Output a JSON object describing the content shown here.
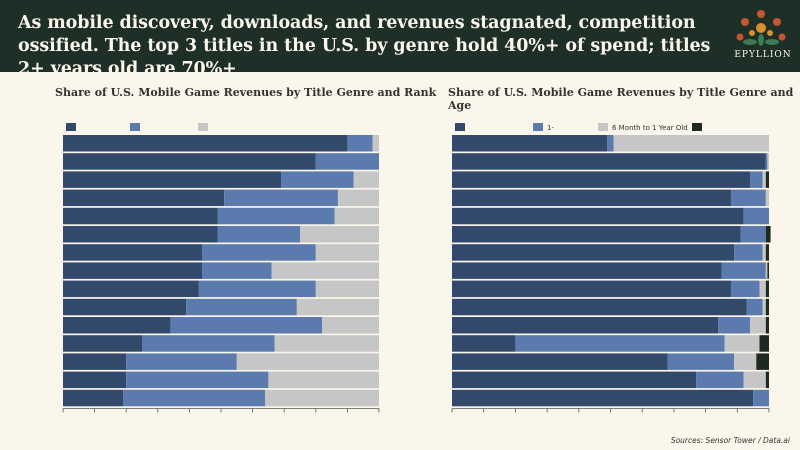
{
  "header": {
    "headline": "As mobile discovery, downloads, and revenues stagnated, competition ossified. The top 3 titles in the U.S. by genre hold 40%+ of spend; titles 2+ years old are 70%+",
    "brand": "EPYLLION"
  },
  "source": "Sources: Sensor Tower / Data.ai",
  "colors": {
    "background": "#fbf6ec",
    "header": "#1d2f27",
    "series_dark": "#33496b",
    "series_mid": "#5b7bae",
    "series_light": "#c6c6c6",
    "series_black": "#1c2a22"
  },
  "chart_data": [
    {
      "type": "bar",
      "orientation": "horizontal",
      "stacked": true,
      "title": "Share of U.S. Mobile Game Revenues by Title Genre and Rank",
      "legend": [
        "",
        "",
        ""
      ],
      "legend_position": "top-left",
      "xlim": [
        0,
        100
      ],
      "series": [
        {
          "values": [
            90,
            80,
            69,
            51,
            49,
            49,
            44,
            44,
            43,
            39,
            34,
            25,
            20,
            20,
            19
          ]
        },
        {
          "values": [
            8,
            20,
            23,
            36,
            37,
            26,
            36,
            22,
            37,
            35,
            48,
            42,
            35,
            45,
            45
          ]
        },
        {
          "values": [
            2,
            0,
            8,
            13,
            14,
            25,
            20,
            34,
            20,
            26,
            18,
            33,
            45,
            35,
            36
          ]
        }
      ]
    },
    {
      "type": "bar",
      "orientation": "horizontal",
      "stacked": true,
      "title": "Share of U.S. Mobile Game Revenues by Title Genre and Age",
      "legend": [
        "",
        "1-",
        "6 Month to 1 Year Old",
        ""
      ],
      "legend_position": "top-left",
      "xlim": [
        0,
        100
      ],
      "series": [
        {
          "values": [
            49,
            99,
            94,
            88,
            92,
            91,
            89,
            85,
            88,
            93,
            84,
            20,
            68,
            77,
            95
          ]
        },
        {
          "values": [
            2,
            0.5,
            4,
            11,
            8,
            8,
            9,
            14,
            9,
            5,
            10,
            66,
            21,
            15,
            5
          ]
        },
        {
          "values": [
            49,
            0.5,
            1,
            1,
            0,
            0,
            1,
            0.5,
            2,
            1,
            5,
            11,
            7,
            7,
            0
          ]
        },
        {
          "values": [
            0,
            0,
            1,
            0,
            0,
            1.5,
            1,
            0.5,
            1,
            1,
            1,
            3,
            4,
            1,
            0
          ]
        }
      ]
    }
  ]
}
